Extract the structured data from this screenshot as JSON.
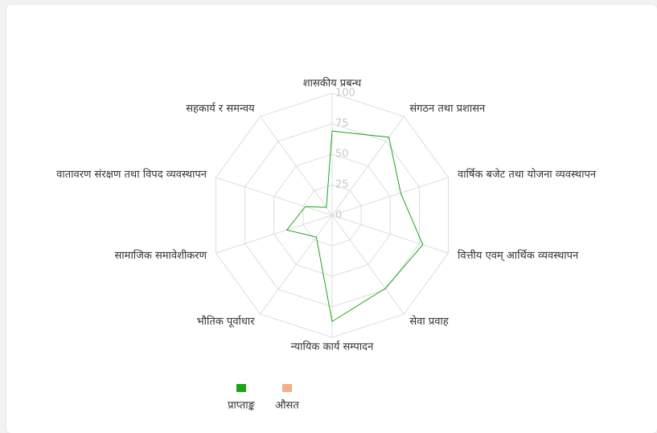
{
  "chart_data": {
    "type": "radar",
    "categories": [
      "शासकीय प्रबन्ध",
      "संगठन तथा प्रशासन",
      "वार्षिक बजेट तथा योजना व्यवस्थापन",
      "वित्तीय एवम् आर्थिक व्यवस्थापन",
      "सेवा प्रवाह",
      "न्यायिक कार्य सम्पादन",
      "भौतिक पूर्वाधार",
      "सामाजिक समावेशीकरण",
      "वातावरण संरक्षण तथा विपद व्यवस्थापन",
      "सहकार्य र समन्वय"
    ],
    "series": [
      {
        "name": "प्राप्ताङ्क",
        "color": "#1aa51a",
        "values": [
          69,
          79,
          59,
          78,
          74,
          87,
          22,
          39,
          23,
          8
        ]
      },
      {
        "name": "औसत",
        "color": "#f4b183",
        "values": [
          0,
          0,
          0,
          0,
          0,
          0,
          0,
          0,
          0,
          0
        ]
      }
    ],
    "ylim": [
      0,
      100
    ],
    "yticks": [
      0,
      25,
      50,
      75,
      100
    ],
    "grid": true
  }
}
